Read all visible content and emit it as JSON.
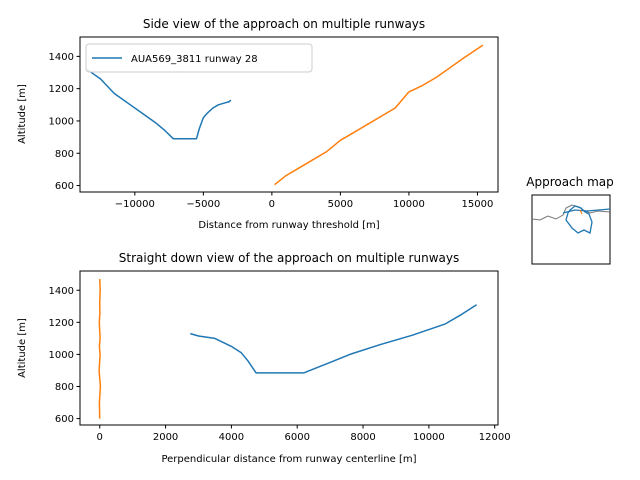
{
  "chart_data": [
    {
      "id": "side",
      "type": "line",
      "title": "Side view of the approach on multiple runways",
      "xlabel": "Distance from runway threshold [m]",
      "ylabel": "Altitude [m]",
      "xlim": [
        -14000,
        16500
      ],
      "ylim": [
        560,
        1520
      ],
      "xticks": [
        -10000,
        -5000,
        0,
        5000,
        10000,
        15000
      ],
      "xtick_labels": [
        "−10000",
        "−5000",
        "0",
        "5000",
        "10000",
        "15000"
      ],
      "yticks": [
        600,
        800,
        1000,
        1200,
        1400
      ],
      "ytick_labels": [
        "600",
        "800",
        "1000",
        "1200",
        "1400"
      ],
      "legend": {
        "position": "top-left",
        "entries": [
          "AUA569_3811 runway 28"
        ]
      },
      "series": [
        {
          "name": "AUA569_3811 runway 28",
          "color": "#1f77b4",
          "x": [
            -13500,
            -12500,
            -11500,
            -10500,
            -9500,
            -8500,
            -7800,
            -7200,
            -6500,
            -5500,
            -5300,
            -5000,
            -4700,
            -4300,
            -3900,
            -3500,
            -3100,
            -3000
          ],
          "y": [
            1320,
            1260,
            1170,
            1110,
            1050,
            990,
            940,
            890,
            890,
            890,
            950,
            1020,
            1050,
            1080,
            1100,
            1110,
            1120,
            1130
          ]
        },
        {
          "color": "#ff7f0e",
          "x": [
            200,
            1000,
            2000,
            3000,
            4000,
            5000,
            6000,
            7000,
            8000,
            9000,
            10000,
            11000,
            12000,
            13000,
            14000,
            15400
          ],
          "y": [
            605,
            660,
            710,
            760,
            810,
            880,
            930,
            980,
            1030,
            1080,
            1180,
            1220,
            1270,
            1330,
            1390,
            1470
          ]
        }
      ]
    },
    {
      "id": "top",
      "type": "line",
      "title": "Straight down view of the approach on multiple runways",
      "xlabel": "Perpendicular distance from runway centerline [m]",
      "ylabel": "Altitude [m]",
      "xlim": [
        -600,
        12100
      ],
      "ylim": [
        560,
        1520
      ],
      "xticks": [
        0,
        2000,
        4000,
        6000,
        8000,
        10000,
        12000
      ],
      "xtick_labels": [
        "0",
        "2000",
        "4000",
        "6000",
        "8000",
        "10000",
        "12000"
      ],
      "yticks": [
        600,
        800,
        1000,
        1200,
        1400
      ],
      "ytick_labels": [
        "600",
        "800",
        "1000",
        "1200",
        "1400"
      ],
      "series": [
        {
          "color": "#1f77b4",
          "x": [
            2750,
            3000,
            3500,
            4000,
            4300,
            4500,
            4750,
            6200,
            6500,
            7000,
            7600,
            8500,
            9500,
            10500,
            11000,
            11450
          ],
          "y": [
            1130,
            1115,
            1100,
            1050,
            1010,
            960,
            885,
            885,
            910,
            950,
            1000,
            1060,
            1120,
            1190,
            1250,
            1310
          ]
        },
        {
          "color": "#ff7f0e",
          "x": [
            0,
            -10,
            20,
            -20,
            10,
            -10,
            10,
            0,
            -15,
            5,
            0,
            15,
            0
          ],
          "y": [
            600,
            700,
            800,
            900,
            1000,
            1050,
            1100,
            1150,
            1200,
            1260,
            1320,
            1400,
            1470
          ]
        }
      ]
    },
    {
      "id": "map",
      "type": "line",
      "title": "Approach map"
    }
  ]
}
